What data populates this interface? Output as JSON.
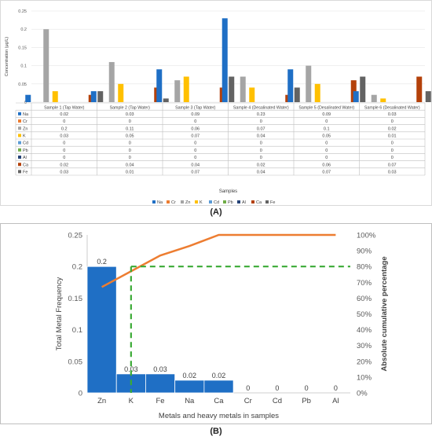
{
  "panel_labels": {
    "a": "(A)",
    "b": "(B)"
  },
  "chart_data": [
    {
      "type": "bar",
      "ylabel": "Concentration (μg/L)",
      "xlabel": "Samples",
      "ylim": [
        0,
        0.25
      ],
      "yticks": [
        "0",
        "0.05",
        "0.1",
        "0.15",
        "0.2",
        "0.25"
      ],
      "categories": [
        "Sample 1 (Tap Water)",
        "Sample 2 (Tap Water)",
        "Sample 3 (Tap Water)",
        "Sample 4 (Desalinated Water)",
        "Sample 5 (Desalinated Water)",
        "Sample 6 (Desalinated Water)"
      ],
      "series": [
        {
          "name": "Na",
          "color": "#1f6fc5",
          "values": [
            0.02,
            0.03,
            0.09,
            0.23,
            0.09,
            0.03
          ]
        },
        {
          "name": "Cr",
          "color": "#ed7d31",
          "values": [
            0,
            0,
            0,
            0,
            0,
            0
          ]
        },
        {
          "name": "Zn",
          "color": "#a5a5a5",
          "values": [
            0.2,
            0.11,
            0.06,
            0.07,
            0.1,
            0.02
          ]
        },
        {
          "name": "K",
          "color": "#ffc000",
          "values": [
            0.03,
            0.05,
            0.07,
            0.04,
            0.05,
            0.01
          ]
        },
        {
          "name": "Cd",
          "color": "#5b9bd5",
          "values": [
            0,
            0,
            0,
            0,
            0,
            0
          ]
        },
        {
          "name": "Pb",
          "color": "#70ad47",
          "values": [
            0,
            0,
            0,
            0,
            0,
            0
          ]
        },
        {
          "name": "Al",
          "color": "#264478",
          "values": [
            0,
            0,
            0,
            0,
            0,
            0
          ]
        },
        {
          "name": "Ca",
          "color": "#b4410a",
          "values": [
            0.02,
            0.04,
            0.04,
            0.02,
            0.06,
            0.07
          ]
        },
        {
          "name": "Fe",
          "color": "#636363",
          "values": [
            0.03,
            0.01,
            0.07,
            0.04,
            0.07,
            0.03
          ]
        }
      ],
      "legend_position": "bottom",
      "data_table": true
    },
    {
      "type": "bar",
      "xlabel": "Metals and heavy metals in samples",
      "ylabel": "Total Metal Frequency",
      "y2label": "Absolute cumulative percentage",
      "ylim": [
        0,
        0.25
      ],
      "yticks": [
        "0",
        "0.05",
        "0.1",
        "0.15",
        "0.2",
        "0.25"
      ],
      "y2lim": [
        0,
        100
      ],
      "y2ticks": [
        "0%",
        "10%",
        "20%",
        "30%",
        "40%",
        "50%",
        "60%",
        "70%",
        "80%",
        "90%",
        "100%"
      ],
      "categories": [
        "Zn",
        "K",
        "Fe",
        "Na",
        "Ca",
        "Cr",
        "Cd",
        "Pb",
        "Al"
      ],
      "values": [
        0.2,
        0.03,
        0.03,
        0.02,
        0.02,
        0,
        0,
        0,
        0
      ],
      "value_labels": [
        "0.2",
        "0.03",
        "0.03",
        "0.02",
        "0.02",
        "0",
        "0",
        "0",
        "0"
      ],
      "bar_color": "#1f6fc5",
      "cumulative_line": {
        "color": "#ed7d31",
        "values": [
          67,
          77,
          87,
          93,
          100,
          100,
          100,
          100,
          100
        ]
      },
      "threshold_line": {
        "color": "#3aaa35",
        "value": 80,
        "style": "dashed"
      },
      "grid": false
    }
  ]
}
